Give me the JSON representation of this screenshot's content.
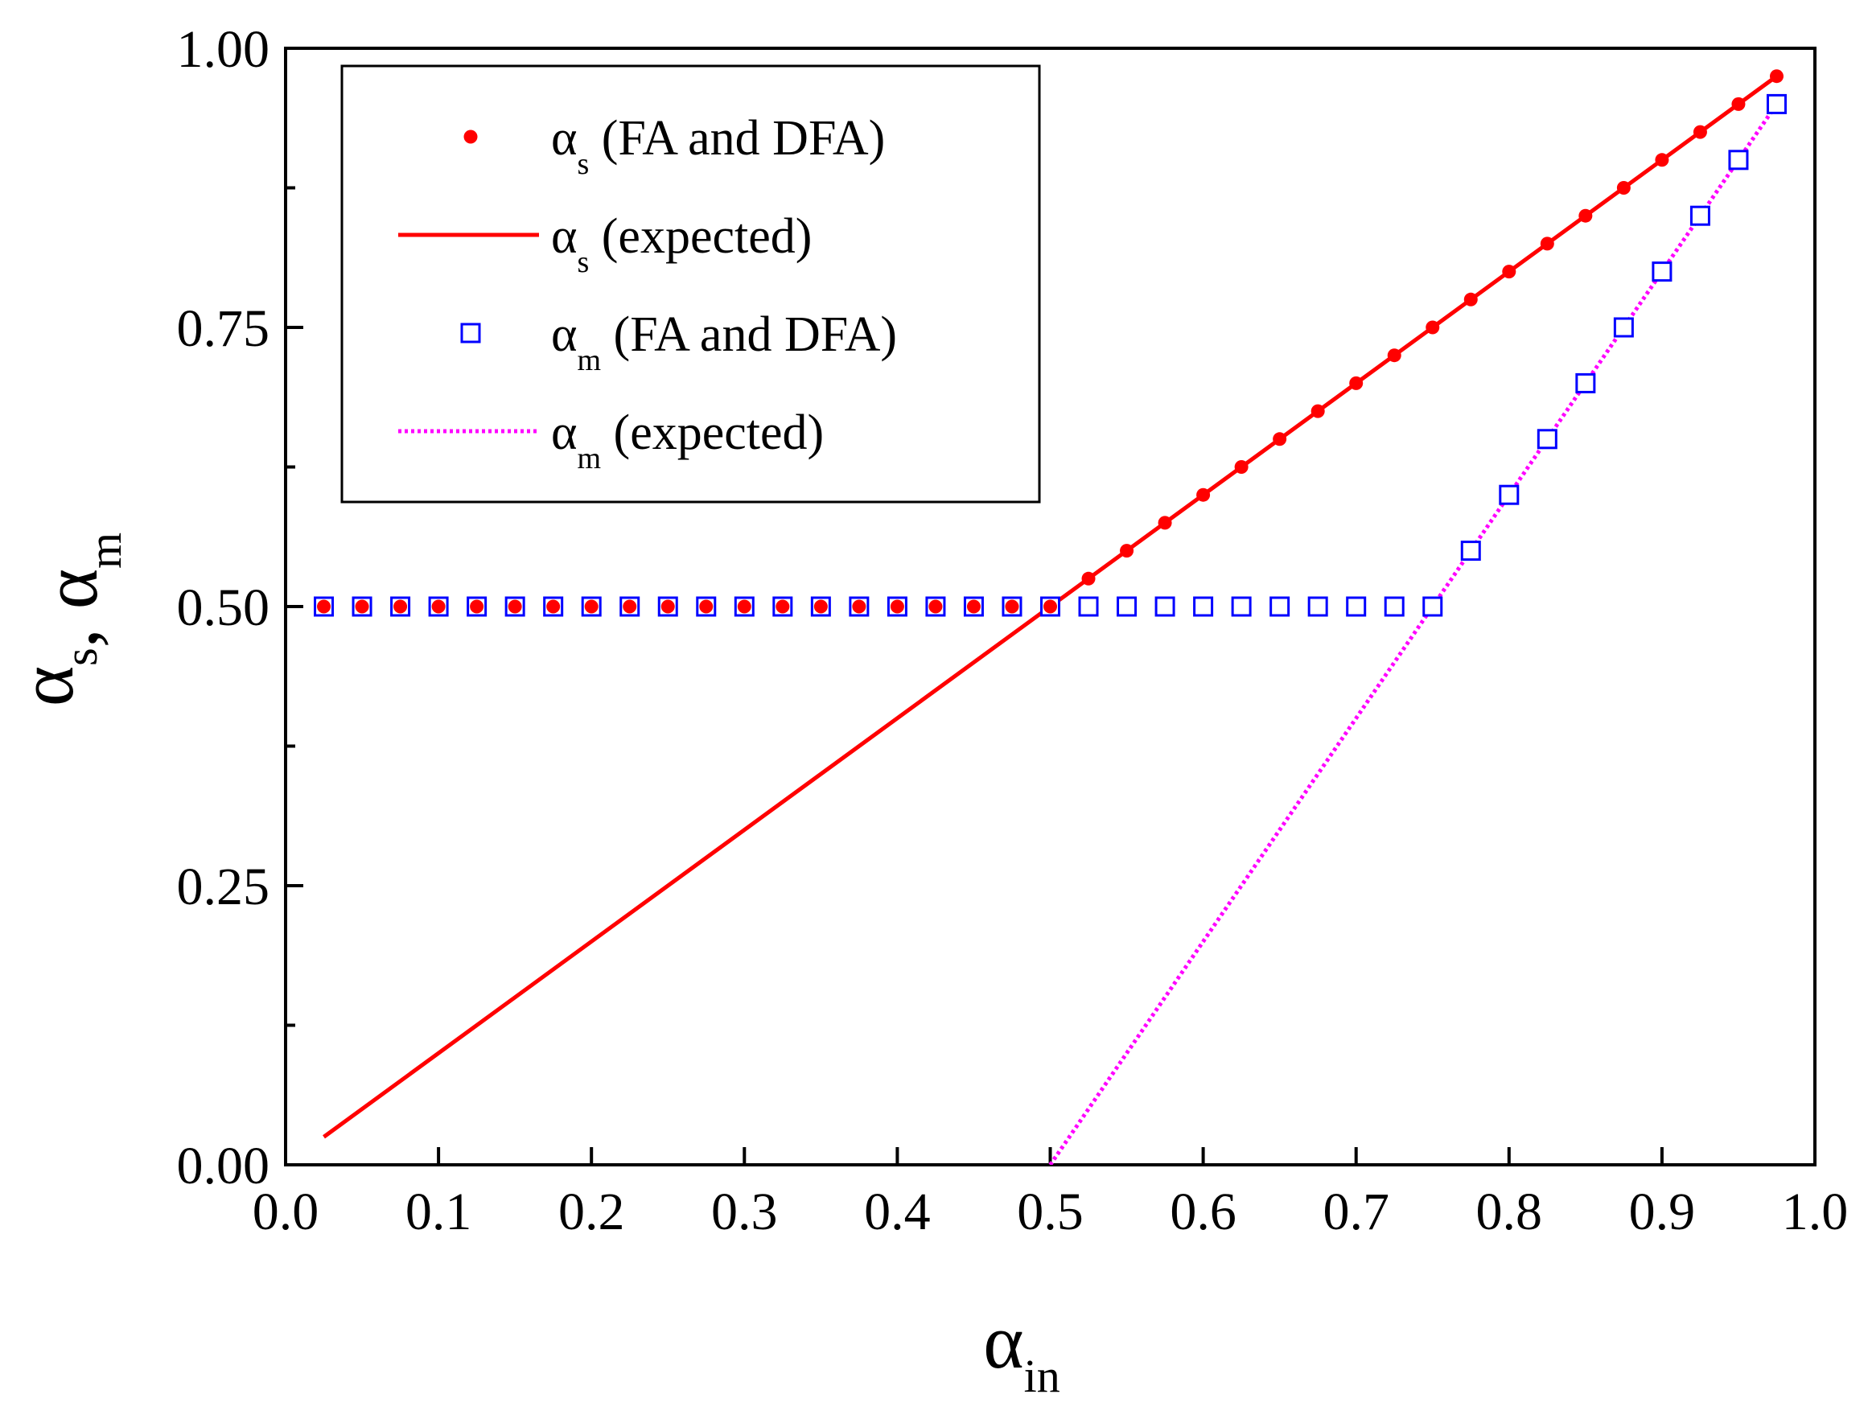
{
  "chart_data": {
    "type": "scatter",
    "title": "",
    "xlabel": {
      "symbol": "α",
      "subscript": "in"
    },
    "ylabel": {
      "parts": [
        {
          "symbol": "α",
          "subscript": "s"
        },
        {
          "separator": ", "
        },
        {
          "symbol": "α",
          "subscript": "m"
        }
      ]
    },
    "xlim": [
      0.0,
      1.0
    ],
    "ylim": [
      0.0,
      1.0
    ],
    "x_ticks": [
      "0.0",
      "0.1",
      "0.2",
      "0.3",
      "0.4",
      "0.5",
      "0.6",
      "0.7",
      "0.8",
      "0.9",
      "1.0"
    ],
    "y_ticks": [
      "0.00",
      "0.25",
      "0.50",
      "0.75",
      "1.00"
    ],
    "y_minor_ticks": [
      0.125,
      0.375,
      0.625,
      0.875
    ],
    "grid": false,
    "legend_position": "top-left",
    "colors": {
      "red": "#ff0000",
      "blue": "#0000ff",
      "magenta": "#ff00ff",
      "axis": "#000000"
    },
    "series": [
      {
        "name": "α_s (FA and DFA)",
        "legend": {
          "symbol": "α",
          "subscript": "s",
          "text": " (FA and DFA)"
        },
        "kind": "points",
        "marker": "filled-circle",
        "color": "#ff0000",
        "x": [
          0.025,
          0.05,
          0.075,
          0.1,
          0.125,
          0.15,
          0.175,
          0.2,
          0.225,
          0.25,
          0.275,
          0.3,
          0.325,
          0.35,
          0.375,
          0.4,
          0.425,
          0.45,
          0.475,
          0.5,
          0.525,
          0.55,
          0.575,
          0.6,
          0.625,
          0.65,
          0.675,
          0.7,
          0.725,
          0.75,
          0.775,
          0.8,
          0.825,
          0.85,
          0.875,
          0.9,
          0.925,
          0.95,
          0.975
        ],
        "y": [
          0.5,
          0.5,
          0.5,
          0.5,
          0.5,
          0.5,
          0.5,
          0.5,
          0.5,
          0.5,
          0.5,
          0.5,
          0.5,
          0.5,
          0.5,
          0.5,
          0.5,
          0.5,
          0.5,
          0.5,
          0.525,
          0.55,
          0.575,
          0.6,
          0.625,
          0.65,
          0.675,
          0.7,
          0.725,
          0.75,
          0.775,
          0.8,
          0.825,
          0.85,
          0.875,
          0.9,
          0.925,
          0.95,
          0.975
        ]
      },
      {
        "name": "α_s (expected)",
        "legend": {
          "symbol": "α",
          "subscript": "s",
          "text": " (expected)"
        },
        "kind": "line",
        "style": "solid",
        "color": "#ff0000",
        "x": [
          0.025,
          0.975
        ],
        "y": [
          0.025,
          0.975
        ]
      },
      {
        "name": "α_m (FA and DFA)",
        "legend": {
          "symbol": "α",
          "subscript": "m",
          "text": " (FA and DFA)"
        },
        "kind": "points",
        "marker": "open-square",
        "color": "#0000ff",
        "x": [
          0.025,
          0.05,
          0.075,
          0.1,
          0.125,
          0.15,
          0.175,
          0.2,
          0.225,
          0.25,
          0.275,
          0.3,
          0.325,
          0.35,
          0.375,
          0.4,
          0.425,
          0.45,
          0.475,
          0.5,
          0.525,
          0.55,
          0.575,
          0.6,
          0.625,
          0.65,
          0.675,
          0.7,
          0.725,
          0.75,
          0.775,
          0.8,
          0.825,
          0.85,
          0.875,
          0.9,
          0.925,
          0.95,
          0.975
        ],
        "y": [
          0.5,
          0.5,
          0.5,
          0.5,
          0.5,
          0.5,
          0.5,
          0.5,
          0.5,
          0.5,
          0.5,
          0.5,
          0.5,
          0.5,
          0.5,
          0.5,
          0.5,
          0.5,
          0.5,
          0.5,
          0.5,
          0.5,
          0.5,
          0.5,
          0.5,
          0.5,
          0.5,
          0.5,
          0.5,
          0.5,
          0.55,
          0.6,
          0.65,
          0.7,
          0.75,
          0.8,
          0.85,
          0.9,
          0.95
        ]
      },
      {
        "name": "α_m (expected)",
        "legend": {
          "symbol": "α",
          "subscript": "m",
          "text": " (expected)"
        },
        "kind": "line",
        "style": "dotted",
        "color": "#ff00ff",
        "x": [
          0.5,
          0.975
        ],
        "y": [
          0.0,
          0.95
        ]
      }
    ]
  }
}
